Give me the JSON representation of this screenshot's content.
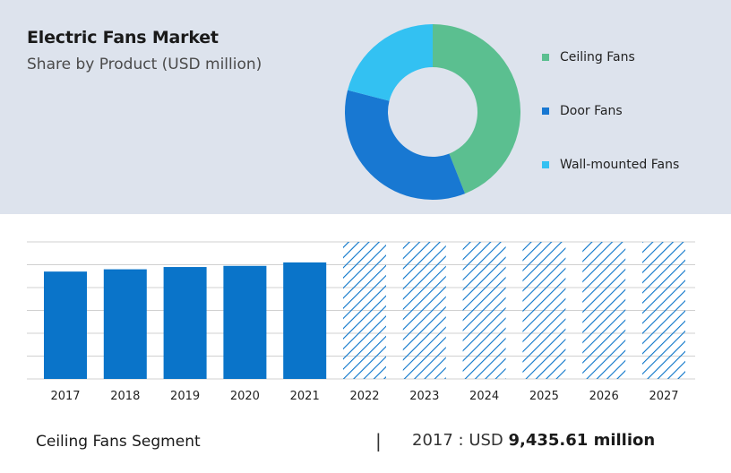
{
  "header": {
    "title": "Electric Fans Market",
    "subtitle": "Share by Product (USD million)"
  },
  "colors": {
    "ceiling": "#5bbf90",
    "door": "#1878d2",
    "wall": "#33c1f2",
    "bar": "#0a74c9",
    "hatch": "#0a74c9",
    "panel": "#dde3ed",
    "grid": "#d0d0d0"
  },
  "chart_data": [
    {
      "type": "pie",
      "categories": [
        "Ceiling Fans",
        "Door Fans",
        "Wall-mounted Fans"
      ],
      "values": [
        44,
        35,
        21
      ],
      "legend_position": "right"
    },
    {
      "type": "bar",
      "categories": [
        "2017",
        "2018",
        "2019",
        "2020",
        "2021",
        "2022",
        "2023",
        "2024",
        "2025",
        "2026",
        "2027"
      ],
      "values": [
        4.7,
        4.8,
        4.9,
        4.95,
        5.1,
        6.0,
        6.0,
        6.0,
        6.0,
        6.0,
        6.0
      ],
      "forecast": [
        false,
        false,
        false,
        false,
        false,
        true,
        true,
        true,
        true,
        true,
        true
      ],
      "ylim": [
        0,
        6
      ],
      "grid": true
    }
  ],
  "footer": {
    "segment_label": "Ceiling Fans Segment",
    "divider": "|",
    "year_text": "2017 : USD ",
    "value_text": "9,435.61 million"
  }
}
